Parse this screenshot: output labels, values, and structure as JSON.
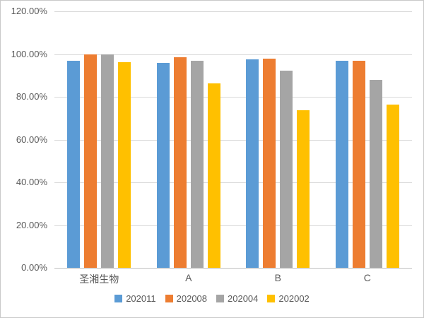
{
  "chart_data": {
    "type": "bar",
    "title": "",
    "xlabel": "",
    "ylabel": "",
    "categories": [
      "圣湘生物",
      "A",
      "B",
      "C"
    ],
    "series": [
      {
        "name": "202011",
        "color": "#5B9BD5",
        "values": [
          97.0,
          95.8,
          97.6,
          96.8
        ]
      },
      {
        "name": "202008",
        "color": "#ED7D31",
        "values": [
          100.0,
          98.4,
          97.8,
          96.8
        ]
      },
      {
        "name": "202004",
        "color": "#A5A5A5",
        "values": [
          100.0,
          96.8,
          92.3,
          87.8
        ]
      },
      {
        "name": "202002",
        "color": "#FFC000",
        "values": [
          96.3,
          86.2,
          73.8,
          76.5
        ]
      }
    ],
    "y_ticks": [
      {
        "label": "0.00%",
        "value": 0
      },
      {
        "label": "20.00%",
        "value": 20
      },
      {
        "label": "40.00%",
        "value": 40
      },
      {
        "label": "60.00%",
        "value": 60
      },
      {
        "label": "80.00%",
        "value": 80
      },
      {
        "label": "100.00%",
        "value": 100
      },
      {
        "label": "120.00%",
        "value": 120
      }
    ],
    "ylim": [
      0,
      120
    ],
    "grid": true,
    "legend_position": "bottom"
  },
  "style": {
    "background": "#FFFFFF",
    "frame_border": "#C9C9C9",
    "grid_color": "#D9D9D9",
    "axis_color": "#BFBFBF",
    "text_color": "#595959"
  }
}
